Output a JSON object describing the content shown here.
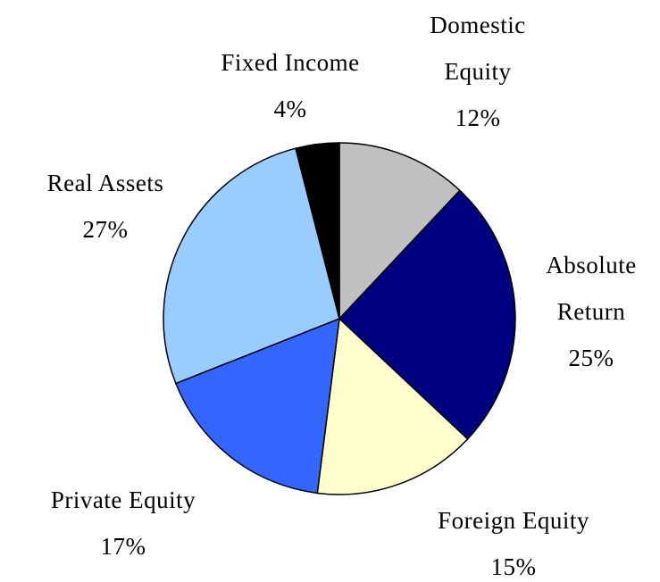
{
  "chart_data": {
    "type": "pie",
    "categories": [
      "Domestic Equity",
      "Absolute Return",
      "Foreign Equity",
      "Private Equity",
      "Real Assets",
      "Fixed Income"
    ],
    "values": [
      12,
      25,
      15,
      17,
      27,
      4
    ],
    "value_labels": [
      "12%",
      "25%",
      "15%",
      "17%",
      "27%",
      "4%"
    ],
    "colors": [
      "#c0c0c0",
      "#000080",
      "#ffffcc",
      "#3366ff",
      "#99ccff",
      "#000000"
    ]
  }
}
